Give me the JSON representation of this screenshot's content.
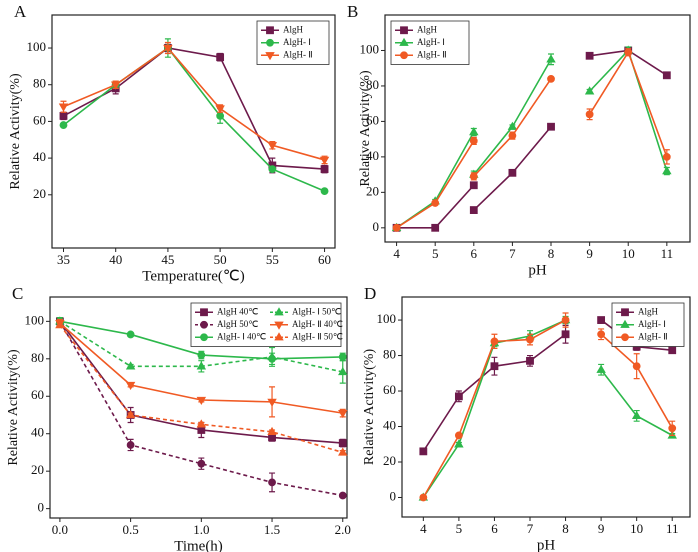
{
  "chart_data": [
    {
      "type": "line",
      "label": "A",
      "xlabel": "Temperature(℃)",
      "ylabel": "Relative Activity(%)",
      "x": [
        35,
        40,
        45,
        50,
        55,
        60
      ],
      "xlim": [
        33.9,
        61
      ],
      "xticks": [
        35,
        40,
        45,
        50,
        55,
        60
      ],
      "ylim": [
        -9,
        118
      ],
      "yticks": [
        20,
        40,
        60,
        80,
        100
      ],
      "legend": "upper right",
      "series": [
        {
          "name": "AlgH",
          "color": "#6d1a4b",
          "marker": "square",
          "values": [
            63,
            78,
            100,
            95,
            36,
            34
          ],
          "errors": [
            2,
            3,
            2,
            2,
            4,
            2
          ]
        },
        {
          "name": "AlgH- Ⅰ",
          "color": "#2db84b",
          "marker": "circle",
          "values": [
            58,
            80,
            100,
            63,
            34,
            22
          ],
          "errors": [
            1,
            2,
            5,
            4,
            1,
            1
          ]
        },
        {
          "name": "AlgH- Ⅱ",
          "color": "#f05a24",
          "marker": "triangle-down",
          "values": [
            68,
            80,
            100,
            67,
            47,
            39
          ],
          "errors": [
            3,
            2,
            3,
            2,
            2,
            2
          ]
        }
      ]
    },
    {
      "type": "line",
      "label": "B",
      "xlabel": "pH",
      "ylabel": "Relative Activity(%)",
      "x": [
        4,
        5,
        6,
        null,
        6,
        7,
        8,
        null,
        9,
        10,
        11
      ],
      "xlim": [
        3.7,
        11.6
      ],
      "xticks": [
        4,
        5,
        6,
        7,
        8,
        9,
        10,
        11
      ],
      "ylim": [
        -8,
        120
      ],
      "yticks": [
        0,
        20,
        40,
        60,
        80,
        100
      ],
      "legend": "upper left",
      "series": [
        {
          "name": "AlgH",
          "color": "#6d1a4b",
          "marker": "square",
          "values": [
            0,
            0,
            24,
            null,
            10,
            31,
            57,
            null,
            97,
            100,
            86
          ]
        },
        {
          "name": "AlgH- Ⅰ",
          "color": "#2db84b",
          "marker": "triangle",
          "values": [
            0,
            15,
            54,
            null,
            30,
            57,
            95,
            null,
            77,
            100,
            32
          ],
          "errors": [
            1,
            1,
            2,
            null,
            2,
            1,
            3,
            null,
            1,
            2,
            2
          ]
        },
        {
          "name": "AlgH- Ⅱ",
          "color": "#f05a24",
          "marker": "circle",
          "values": [
            0,
            14,
            49,
            null,
            29,
            52,
            84,
            null,
            64,
            99,
            40
          ],
          "errors": [
            1,
            1,
            2,
            null,
            2,
            2,
            1,
            null,
            3,
            2,
            4
          ]
        }
      ]
    },
    {
      "type": "line",
      "label": "C",
      "xlabel": "Time(h)",
      "ylabel": "Relative Activity(%)",
      "x": [
        0,
        0.5,
        1,
        1.5,
        2
      ],
      "xlim": [
        -0.07,
        2.03
      ],
      "xticks": [
        {
          "value": 0,
          "label": "0.0"
        },
        0.5,
        {
          "value": 1,
          "label": "1.0"
        },
        1.5,
        {
          "value": 2,
          "label": "2.0"
        }
      ],
      "ylim": [
        -5,
        113
      ],
      "yticks": [
        0,
        20,
        40,
        60,
        80,
        100
      ],
      "legend": "upper right",
      "series": [
        {
          "name": "AlgH 40℃",
          "color": "#6d1a4b",
          "marker": "square",
          "values": [
            100,
            50,
            42,
            38,
            35
          ],
          "errors": [
            2,
            4,
            4,
            2,
            2
          ]
        },
        {
          "name": "AlgH 50℃",
          "color": "#6d1a4b",
          "marker": "circle",
          "dashed": true,
          "values": [
            100,
            34,
            24,
            14,
            7
          ],
          "errors": [
            2,
            3,
            3,
            5,
            1
          ]
        },
        {
          "name": "AlgH- Ⅰ 40℃",
          "color": "#2db84b",
          "marker": "circle",
          "values": [
            100,
            93,
            82,
            80,
            81
          ],
          "errors": [
            1,
            1,
            2,
            3,
            2
          ]
        },
        {
          "name": "AlgH- Ⅰ 50℃",
          "color": "#2db84b",
          "marker": "triangle",
          "dashed": true,
          "values": [
            100,
            76,
            76,
            81,
            73
          ],
          "errors": [
            2,
            1,
            3,
            5,
            6
          ]
        },
        {
          "name": "AlgH- Ⅱ 40℃",
          "color": "#f05a24",
          "marker": "triangle-down",
          "values": [
            99,
            66,
            58,
            57,
            51
          ],
          "errors": [
            2,
            1,
            1,
            8,
            2
          ]
        },
        {
          "name": "AlgH- Ⅱ 50℃",
          "color": "#f05a24",
          "marker": "triangle",
          "dashed": true,
          "values": [
            98,
            50,
            45,
            41,
            30
          ],
          "errors": [
            1,
            1,
            1,
            1,
            1
          ]
        }
      ]
    },
    {
      "type": "line",
      "label": "D",
      "xlabel": "pH",
      "ylabel": "Relative Activity(%)",
      "x": [
        4,
        5,
        6,
        7,
        8,
        null,
        9,
        10,
        11
      ],
      "xlim": [
        3.4,
        11.5
      ],
      "xticks": [
        4,
        5,
        6,
        7,
        8,
        9,
        10,
        11
      ],
      "ylim": [
        -11,
        113
      ],
      "yticks": [
        0,
        20,
        40,
        60,
        80,
        100
      ],
      "legend": "upper right",
      "series": [
        {
          "name": "AlgH",
          "color": "#6d1a4b",
          "marker": "square",
          "values": [
            26,
            57,
            74,
            77,
            92,
            null,
            100,
            85,
            83
          ],
          "errors": [
            1,
            3,
            5,
            3,
            5,
            null,
            1,
            2,
            1
          ]
        },
        {
          "name": "AlgH- Ⅰ",
          "color": "#2db84b",
          "marker": "triangle",
          "values": [
            0,
            30,
            87,
            91,
            100,
            null,
            72,
            46,
            35
          ],
          "errors": [
            1,
            1,
            2,
            3,
            2,
            null,
            3,
            3,
            1
          ]
        },
        {
          "name": "AlgH- Ⅱ",
          "color": "#f05a24",
          "marker": "circle",
          "values": [
            0,
            35,
            88,
            89,
            100,
            null,
            92,
            74,
            39
          ],
          "errors": [
            1,
            1,
            4,
            3,
            4,
            null,
            3,
            7,
            4
          ]
        }
      ]
    }
  ]
}
